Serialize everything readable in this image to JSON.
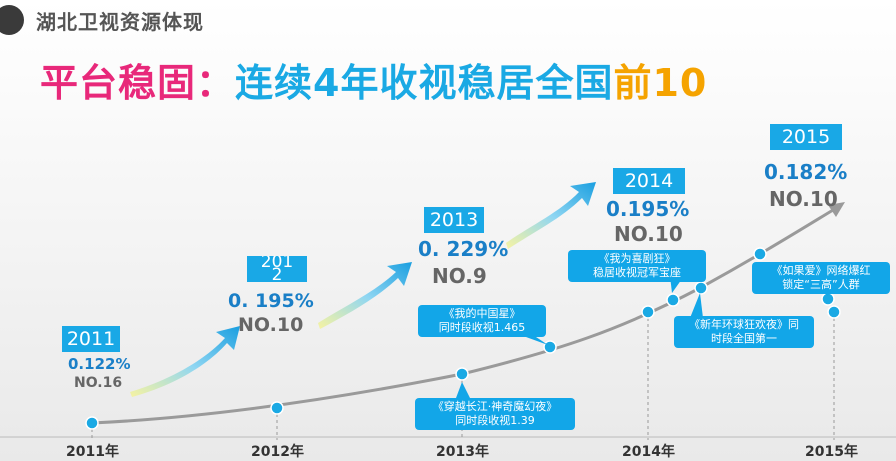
{
  "header": {
    "title": "湖北卫视资源体现"
  },
  "headline": {
    "part1": "平台稳固：",
    "part2": "连续4年收视稳居全国",
    "part3": "前10"
  },
  "years": [
    {
      "label": "2011",
      "share": "0.122%",
      "rank": "NO.16"
    },
    {
      "label": "201\n2",
      "share": "0. 195%",
      "rank": "NO.10"
    },
    {
      "label": "2013",
      "share": "0. 229%",
      "rank": "NO.9"
    },
    {
      "label": "2014",
      "share": "0.195%",
      "rank": "NO.10"
    },
    {
      "label": "2015",
      "share": "0.182%",
      "rank": "NO.10"
    }
  ],
  "axis": [
    "2011年",
    "2012年",
    "2013年",
    "2014年",
    "2015年"
  ],
  "annotations": [
    {
      "line1": "《穿越长江·神奇魔幻夜》",
      "line2": "同时段收视1.39"
    },
    {
      "line1": "《我的中国星》",
      "line2": "同时段收视1.465"
    },
    {
      "line1": "《我为喜剧狂》",
      "line2": "稳居收视冠军宝座"
    },
    {
      "line1": "《新年环球狂欢夜》同",
      "line2": "时段全国第一"
    },
    {
      "line1": "《如果爱》网络爆红",
      "line2": "锁定“三高”人群"
    }
  ],
  "colors": {
    "pink": "#e8287a",
    "blue": "#1aa9e4",
    "orange": "#f5a300",
    "box": "#19a8e6",
    "line": "#9a9a9a"
  }
}
